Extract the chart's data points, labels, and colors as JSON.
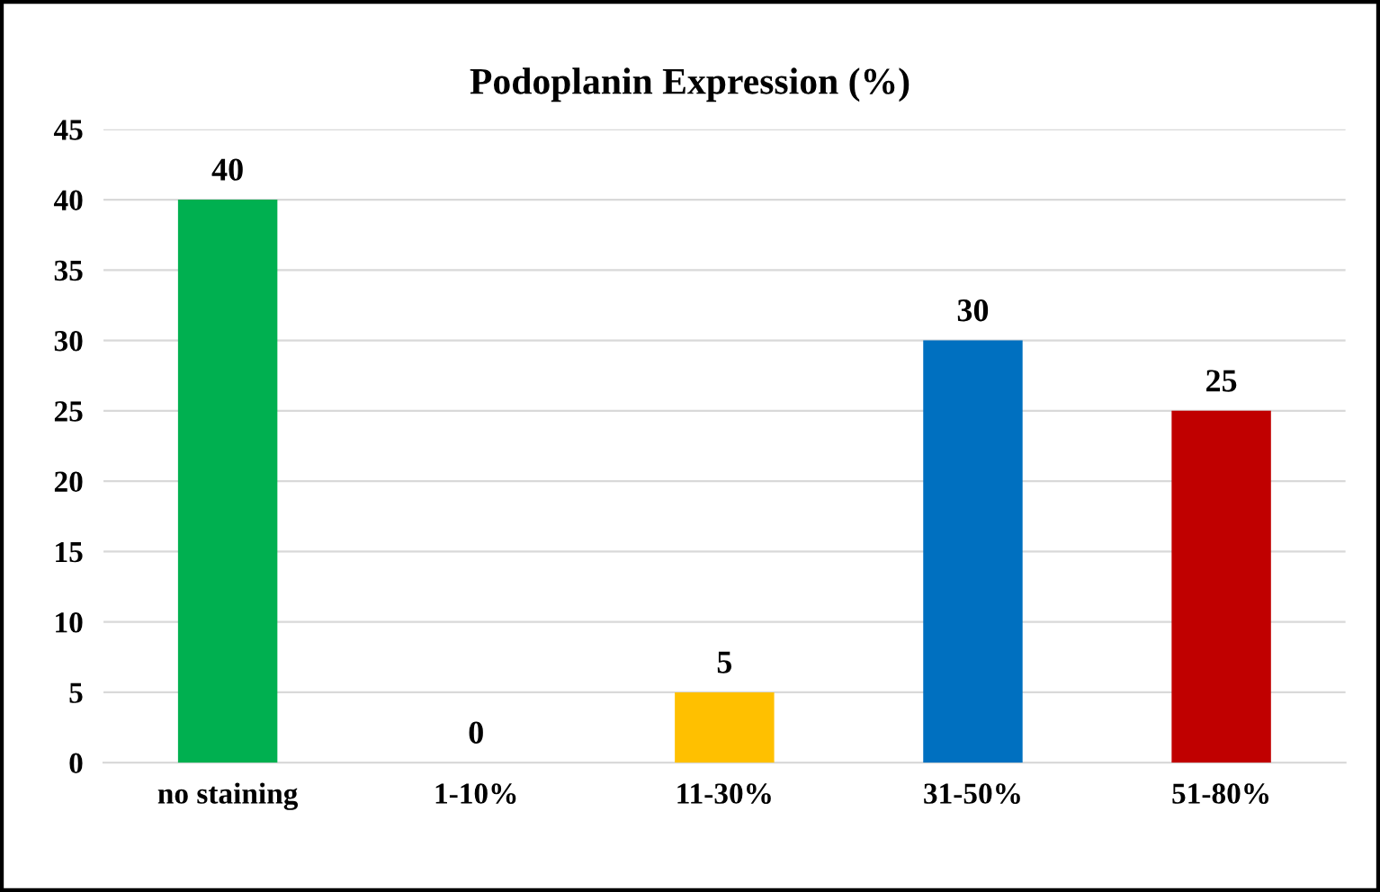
{
  "chart_data": {
    "type": "bar",
    "title": "Podoplanin Expression (%)",
    "categories": [
      "no staining",
      "1-10%",
      "11-30%",
      "31-50%",
      "51-80%"
    ],
    "values": [
      40,
      0,
      5,
      30,
      25
    ],
    "colors": [
      "#00b050",
      "#ffc000",
      "#ffc000",
      "#0070c0",
      "#c00000"
    ],
    "ylim": [
      0,
      45
    ],
    "yticks": [
      0,
      5,
      10,
      15,
      20,
      25,
      30,
      35,
      40,
      45
    ],
    "grid": "y",
    "data_labels": true
  }
}
